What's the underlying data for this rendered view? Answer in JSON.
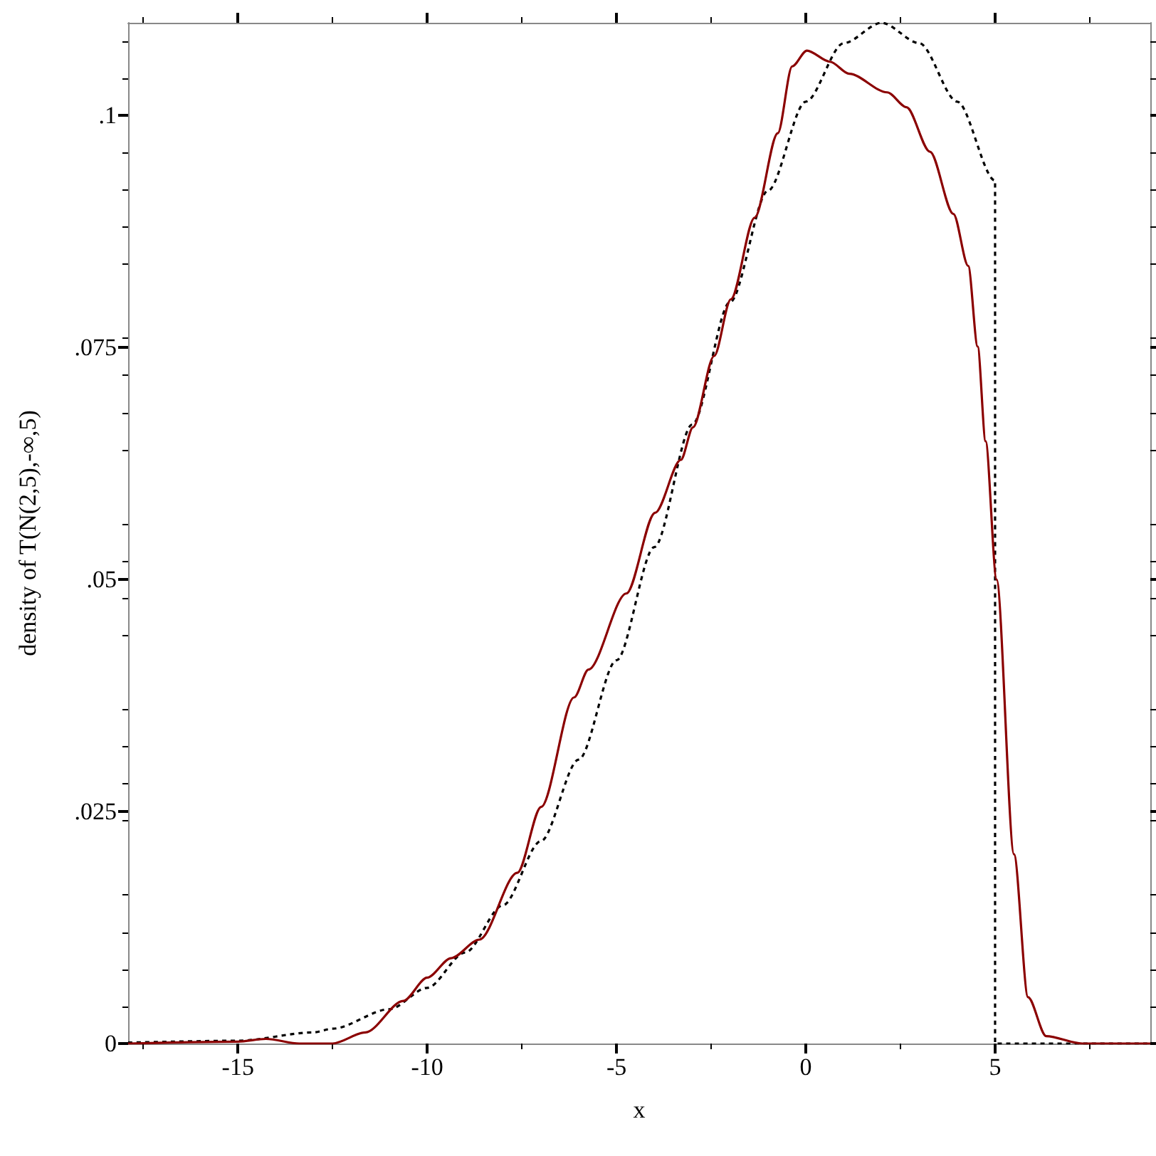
{
  "chart_data": {
    "type": "line",
    "xlabel": "x",
    "ylabel": "density of T(N(2,5),-∞,5)",
    "xlim": [
      -17.9,
      9.1
    ],
    "ylim": [
      0,
      0.11
    ],
    "xticks": [
      -15,
      -10,
      -5,
      0,
      5
    ],
    "yticks": [
      {
        "value": 0,
        "label": "0"
      },
      {
        "value": 0.025,
        "label": ".025"
      },
      {
        "value": 0.05,
        "label": ".05"
      },
      {
        "value": 0.075,
        "label": ".075"
      },
      {
        "value": 0.1,
        "label": ".1"
      }
    ],
    "marker": "none",
    "series": [
      {
        "color": "#000000",
        "line_style": "dashed",
        "x": [
          -17.9,
          -15,
          -13,
          -12.5,
          -11,
          -10,
          -9,
          -8,
          -7,
          -6,
          -5,
          -4,
          -3,
          -2,
          -1,
          0,
          1,
          2,
          3,
          4,
          5,
          5,
          9.1
        ],
        "values": [
          0.0001,
          0.0003,
          0.0012,
          0.0016,
          0.0037,
          0.006,
          0.0098,
          0.0149,
          0.0218,
          0.0306,
          0.0413,
          0.0535,
          0.0667,
          0.0799,
          0.0919,
          0.1015,
          0.1078,
          0.11,
          0.1078,
          0.1015,
          0.093,
          0,
          0
        ]
      },
      {
        "color": "#8b0000",
        "line_style": "solid",
        "x": [
          -17.9,
          -15,
          -14.26,
          -13.38,
          -12.5,
          -11.63,
          -10.63,
          -10,
          -9.37,
          -8.62,
          -7.62,
          -6.99,
          -6.12,
          -5.74,
          -4.74,
          -3.98,
          -3.3,
          -2.98,
          -2.42,
          -1.98,
          -1.35,
          -0.74,
          -0.36,
          0.03,
          0.64,
          1.15,
          2.15,
          2.66,
          3.28,
          3.9,
          4.29,
          4.54,
          4.75,
          5.04,
          5.5,
          5.87,
          6.35,
          7.3,
          9.1
        ],
        "values": [
          0,
          0.0002,
          0.0005,
          0,
          0,
          0.0012,
          0.0046,
          0.0071,
          0.0092,
          0.0112,
          0.0184,
          0.0255,
          0.0373,
          0.0403,
          0.0485,
          0.0572,
          0.0629,
          0.0664,
          0.0741,
          0.0802,
          0.089,
          0.0981,
          0.1053,
          0.107,
          0.1058,
          0.1045,
          0.1025,
          0.1009,
          0.0961,
          0.0894,
          0.0838,
          0.0751,
          0.0649,
          0.05,
          0.0204,
          0.005,
          0.0008,
          0,
          0
        ]
      }
    ]
  }
}
